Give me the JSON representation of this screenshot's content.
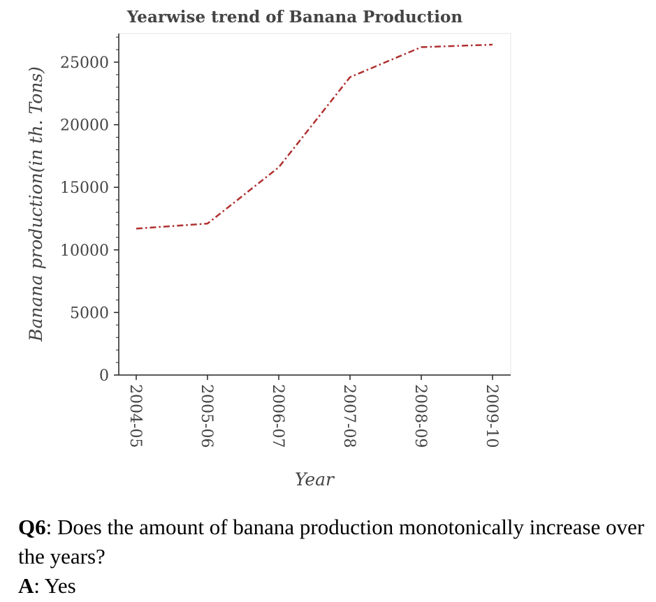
{
  "chart_data": {
    "type": "line",
    "title": "Yearwise trend of Banana Production",
    "xlabel": "Year",
    "ylabel": "Banana production(in th. Tons)",
    "categories": [
      "2004-05",
      "2005-06",
      "2006-07",
      "2007-08",
      "2008-09",
      "2009-10"
    ],
    "series": [
      {
        "values": [
          11700,
          12100,
          16600,
          23800,
          26200,
          26400
        ],
        "color": "#b03030",
        "line_style": "dash-dot"
      }
    ],
    "ylim": [
      0,
      27000
    ],
    "yticks": [
      0,
      5000,
      10000,
      15000,
      20000,
      25000
    ],
    "grid": false
  },
  "qa": {
    "q_label": "Q6",
    "q_text": ": Does the amount of banana production monotonically increase over the years?",
    "a_label": "A",
    "a_text": ": Yes"
  }
}
